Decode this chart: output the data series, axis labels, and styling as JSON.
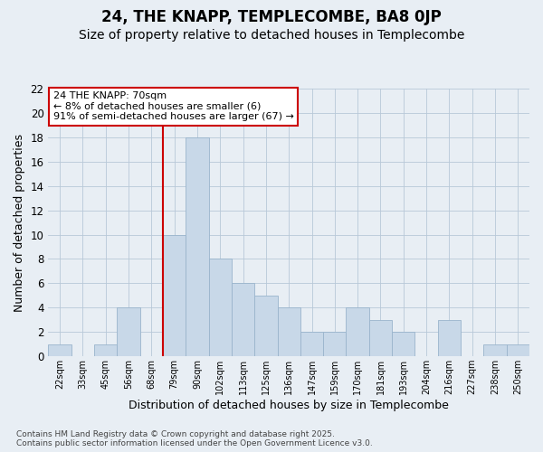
{
  "title": "24, THE KNAPP, TEMPLECOMBE, BA8 0JP",
  "subtitle": "Size of property relative to detached houses in Templecombe",
  "xlabel": "Distribution of detached houses by size in Templecombe",
  "ylabel": "Number of detached properties",
  "bar_color": "#c8d8e8",
  "bar_edge_color": "#9ab4cc",
  "bins": [
    "22sqm",
    "33sqm",
    "45sqm",
    "56sqm",
    "68sqm",
    "79sqm",
    "90sqm",
    "102sqm",
    "113sqm",
    "125sqm",
    "136sqm",
    "147sqm",
    "159sqm",
    "170sqm",
    "181sqm",
    "193sqm",
    "204sqm",
    "216sqm",
    "227sqm",
    "238sqm",
    "250sqm"
  ],
  "values": [
    1,
    0,
    1,
    4,
    0,
    10,
    18,
    8,
    6,
    5,
    4,
    2,
    2,
    4,
    3,
    2,
    0,
    3,
    0,
    1,
    1
  ],
  "vline_color": "#cc0000",
  "annotation_text": "24 THE KNAPP: 70sqm\n← 8% of detached houses are smaller (6)\n91% of semi-detached houses are larger (67) →",
  "annotation_box_color": "#ffffff",
  "annotation_box_edge_color": "#cc0000",
  "ylim": [
    0,
    22
  ],
  "yticks": [
    0,
    2,
    4,
    6,
    8,
    10,
    12,
    14,
    16,
    18,
    20,
    22
  ],
  "grid_color": "#b8c8d8",
  "background_color": "#e8eef4",
  "footer": "Contains HM Land Registry data © Crown copyright and database right 2025.\nContains public sector information licensed under the Open Government Licence v3.0.",
  "title_fontsize": 12,
  "subtitle_fontsize": 10,
  "vline_pos": 4.5
}
